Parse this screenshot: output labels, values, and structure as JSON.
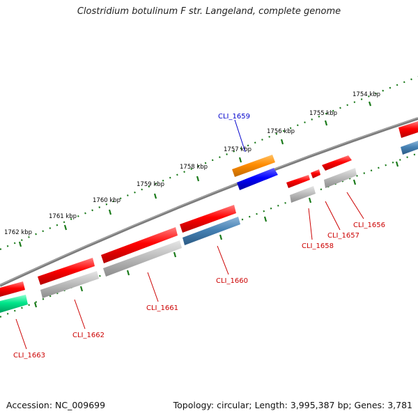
{
  "header": {
    "title": "Clostridium botulinum F str. Langeland, complete genome"
  },
  "footer": {
    "accession": "Accession: NC_009699",
    "summary": "Topology: circular; Length: 3,995,387 bp; Genes: 3,781"
  },
  "scale": {
    "ticks": [
      "1754 kbp",
      "1755 kbp",
      "1756 kbp",
      "1757 kbp",
      "1758 kbp",
      "1759 kbp",
      "1760 kbp",
      "1761 kbp",
      "1762 kbp"
    ]
  },
  "genes": [
    {
      "label": "CLI_1656",
      "color": "#cc0000"
    },
    {
      "label": "CLI_1657",
      "color": "#cc0000"
    },
    {
      "label": "CLI_1658",
      "color": "#cc0000"
    },
    {
      "label": "CLI_1659",
      "color": "#0000cc"
    },
    {
      "label": "CLI_1660",
      "color": "#cc0000"
    },
    {
      "label": "CLI_1661",
      "color": "#cc0000"
    },
    {
      "label": "CLI_1662",
      "color": "#cc0000"
    },
    {
      "label": "CLI_1663",
      "color": "#cc0000"
    }
  ],
  "colors": {
    "cds_forward": "#ff0000",
    "cds_similarity_gray": "#bbbbbb",
    "cds_steelblue": "#4682b4",
    "cds_orange": "#ff8c00",
    "cds_blue": "#0000ff",
    "cds_green": "#00e68a",
    "tick_green": "#006400",
    "backbone": "#777777"
  }
}
